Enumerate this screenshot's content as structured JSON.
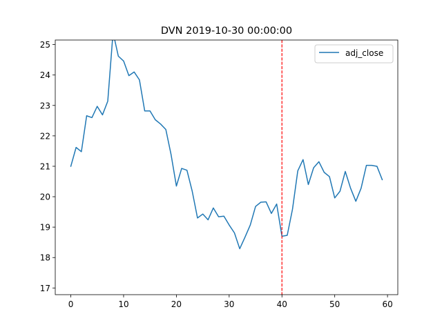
{
  "chart_data": {
    "type": "line",
    "title": "DVN 2019-10-30 00:00:00",
    "xlabel": "",
    "ylabel": "",
    "xlim": [
      -2.95,
      61.95
    ],
    "ylim": [
      16.78,
      25.15
    ],
    "xticks": [
      0,
      10,
      20,
      30,
      40,
      50,
      60
    ],
    "yticks": [
      17,
      18,
      19,
      20,
      21,
      22,
      23,
      24,
      25
    ],
    "grid": false,
    "legend": {
      "position": "top-right",
      "entries": [
        "adj_close"
      ]
    },
    "series": [
      {
        "name": "adj_close",
        "color": "#1f77b4",
        "x": [
          0,
          1,
          2,
          3,
          4,
          5,
          6,
          7,
          8,
          9,
          10,
          11,
          12,
          13,
          14,
          15,
          16,
          17,
          18,
          19,
          20,
          21,
          22,
          23,
          24,
          25,
          26,
          27,
          28,
          29,
          30,
          31,
          32,
          33,
          34,
          35,
          36,
          37,
          38,
          39,
          40,
          41,
          42,
          43,
          44,
          45,
          46,
          47,
          48,
          49,
          50,
          51,
          52,
          53,
          54,
          55,
          56,
          57,
          58,
          59
        ],
        "values": [
          21.0,
          21.62,
          21.48,
          22.66,
          22.6,
          22.97,
          22.69,
          23.14,
          25.4,
          24.62,
          24.46,
          23.98,
          24.1,
          23.84,
          22.82,
          22.82,
          22.53,
          22.39,
          22.21,
          21.38,
          20.35,
          20.93,
          20.87,
          20.18,
          19.3,
          19.43,
          19.24,
          19.63,
          19.34,
          19.36,
          19.07,
          18.81,
          18.29,
          18.67,
          19.07,
          19.68,
          19.82,
          19.83,
          19.45,
          19.76,
          18.7,
          18.73,
          19.59,
          20.85,
          21.22,
          20.4,
          20.95,
          21.15,
          20.8,
          20.66,
          19.96,
          20.18,
          20.83,
          20.28,
          19.85,
          20.28,
          21.03,
          21.03,
          21.0,
          20.56
        ]
      }
    ],
    "vline": {
      "x": 40,
      "color": "#ff0000",
      "style": "dashed"
    }
  }
}
